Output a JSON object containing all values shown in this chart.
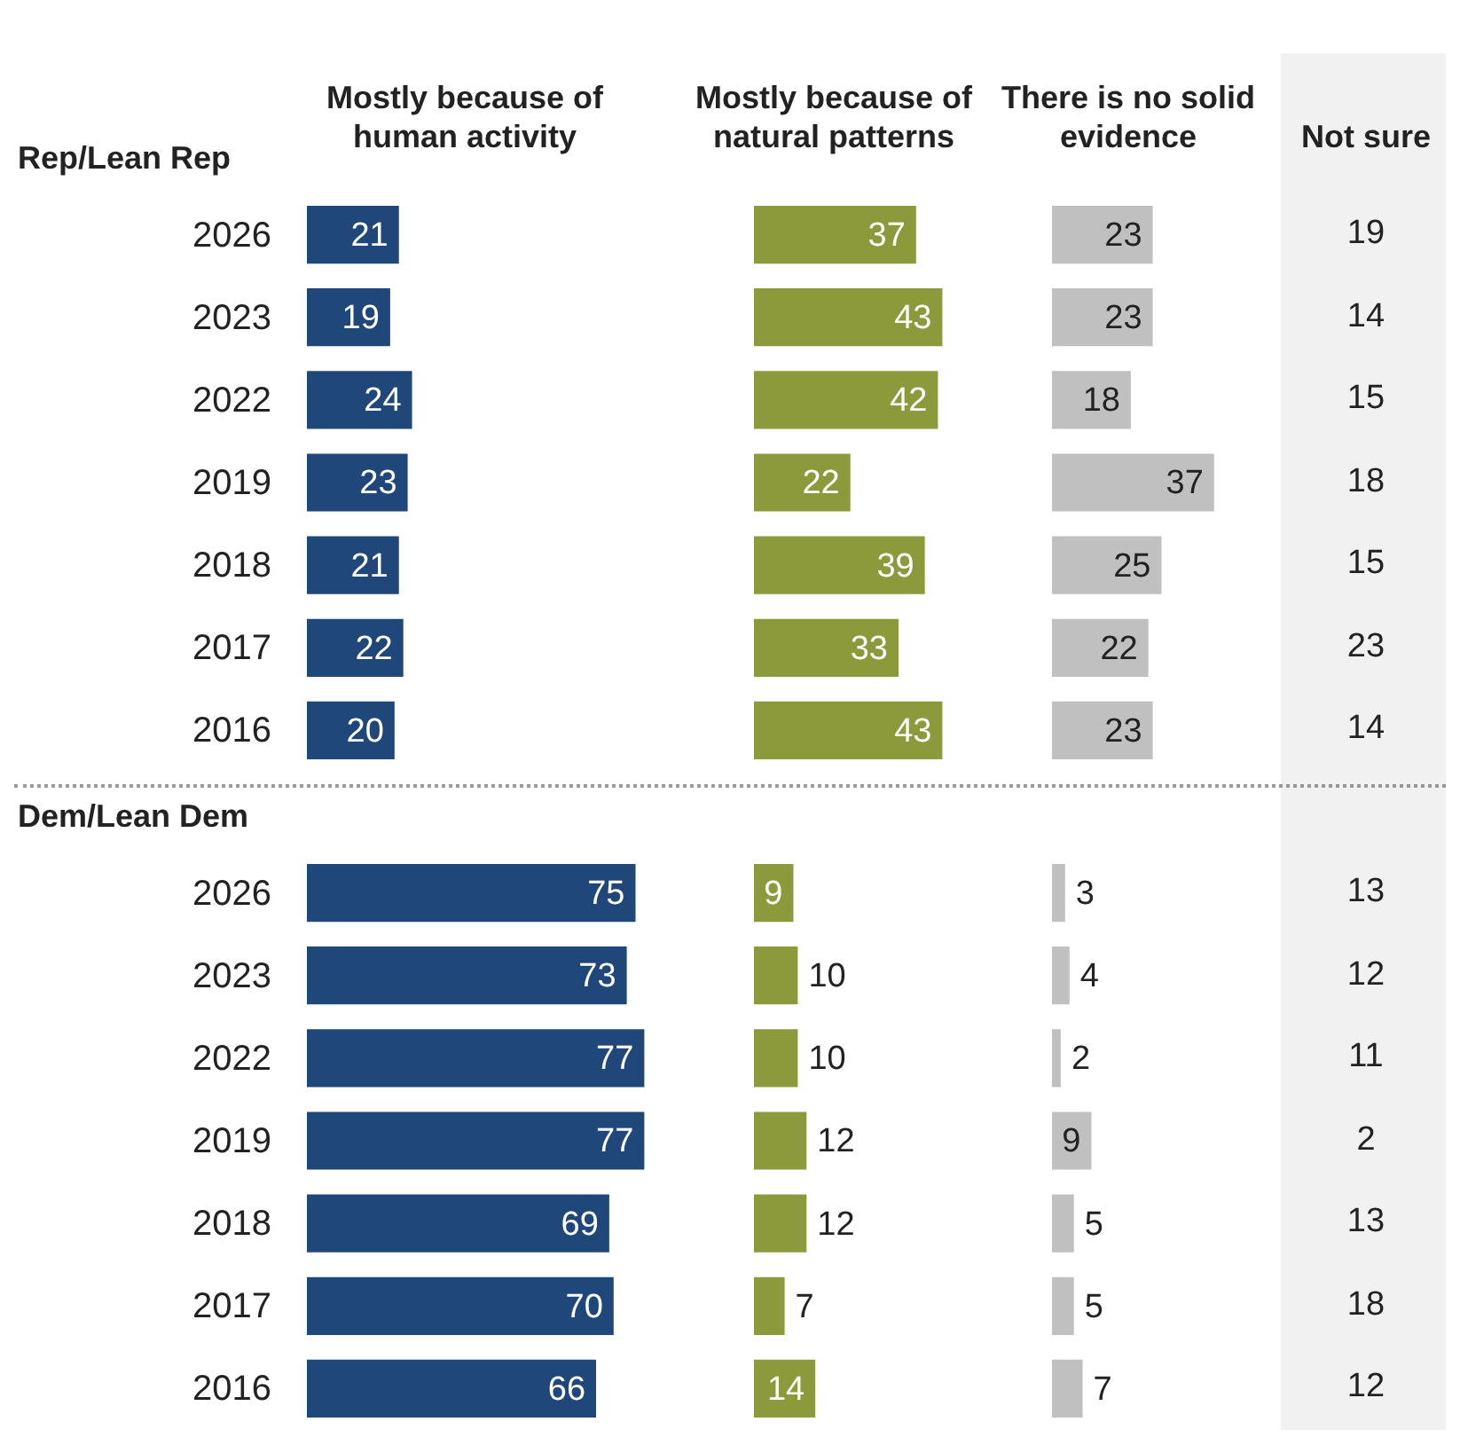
{
  "chart_data": [
    {
      "type": "bar",
      "orientation": "horizontal",
      "title": "Mostly because of human activity",
      "ylabel": "Rep/Lean Rep",
      "categories": [
        "2026",
        "2023",
        "2022",
        "2019",
        "2018",
        "2017",
        "2016"
      ],
      "values": [
        21,
        19,
        24,
        23,
        21,
        22,
        20
      ],
      "color": "#1f477a",
      "data_labels": true,
      "tick_labels": "y"
    },
    {
      "type": "bar",
      "orientation": "horizontal",
      "title": "Mostly because of natural patterns",
      "categories": [
        "2026",
        "2023",
        "2022",
        "2019",
        "2018",
        "2017",
        "2016"
      ],
      "values": [
        37,
        43,
        42,
        22,
        39,
        33,
        43
      ],
      "color": "#8c9a3c",
      "data_labels": true,
      "tick_labels": false
    },
    {
      "type": "bar",
      "orientation": "horizontal",
      "title": "There is no solid evidence",
      "categories": [
        "2026",
        "2023",
        "2022",
        "2019",
        "2018",
        "2017",
        "2016"
      ],
      "values": [
        23,
        23,
        18,
        37,
        25,
        22,
        23
      ],
      "color": "#c0c0c0",
      "data_labels": true,
      "tick_labels": false
    },
    {
      "type": "other",
      "title": "Not sure",
      "annotations": [
        "19",
        "14",
        "15",
        "18",
        "15",
        "23",
        "14"
      ]
    },
    {
      "type": "bar",
      "orientation": "horizontal",
      "ylabel": "Dem/Lean Dem",
      "categories": [
        "2026",
        "2023",
        "2022",
        "2019",
        "2018",
        "2017",
        "2016"
      ],
      "values": [
        75,
        73,
        77,
        77,
        69,
        70,
        66
      ],
      "color": "#1f477a",
      "data_labels": true,
      "tick_labels": "y"
    },
    {
      "type": "bar",
      "orientation": "horizontal",
      "categories": [
        "2026",
        "2023",
        "2022",
        "2019",
        "2018",
        "2017",
        "2016"
      ],
      "values": [
        9,
        10,
        10,
        12,
        12,
        7,
        14
      ],
      "color": "#8c9a3c",
      "data_labels": true,
      "tick_labels": false
    },
    {
      "type": "bar",
      "orientation": "horizontal",
      "categories": [
        "2026",
        "2023",
        "2022",
        "2019",
        "2018",
        "2017",
        "2016"
      ],
      "values": [
        3,
        4,
        2,
        9,
        5,
        5,
        7
      ],
      "color": "#c0c0c0",
      "data_labels": true,
      "tick_labels": false
    },
    {
      "type": "other",
      "annotations": [
        "13",
        "12",
        "11",
        "2",
        "13",
        "18",
        "12"
      ]
    }
  ]
}
